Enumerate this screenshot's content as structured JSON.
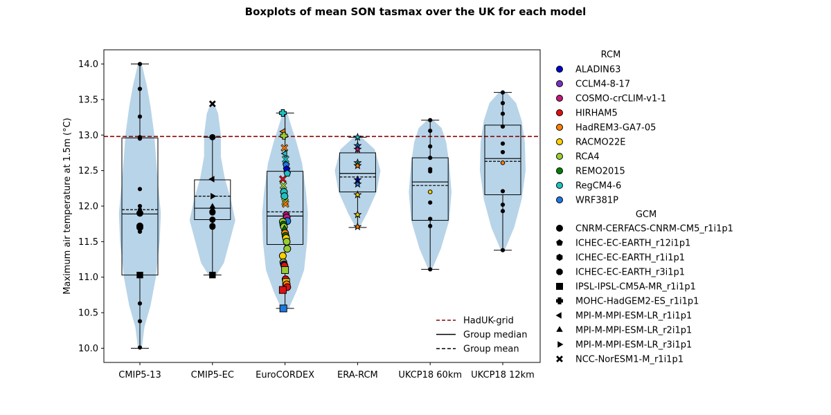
{
  "chart_data": {
    "type": "boxplot",
    "title": "Boxplots of mean SON tasmax over the UK for each model",
    "ylabel": "Maximum air temperature at 1.5m (°C)",
    "xlabel": "",
    "ylim": [
      9.8,
      14.2
    ],
    "yticks": [
      10.0,
      10.5,
      11.0,
      11.5,
      12.0,
      12.5,
      13.0,
      13.5,
      14.0
    ],
    "grid": false,
    "categories": [
      "CMIP5-13",
      "CMIP5-EC",
      "EuroCORDEX",
      "ERA-RCM",
      "UKCP18 60km",
      "UKCP18 12km"
    ],
    "reference_line": {
      "name": "HadUK-grid",
      "value": 12.98,
      "color": "#8b0000",
      "style": "dashed"
    },
    "boxes": [
      {
        "category": "CMIP5-13",
        "whisker_low": 10.0,
        "q1": 11.03,
        "median": 11.89,
        "mean": 11.95,
        "q3": 12.96,
        "whisker_high": 14.0
      },
      {
        "category": "CMIP5-EC",
        "whisker_low": 11.03,
        "q1": 11.81,
        "median": 11.97,
        "mean": 12.14,
        "q3": 12.37,
        "whisker_high": 12.97
      },
      {
        "category": "EuroCORDEX",
        "whisker_low": 10.56,
        "q1": 11.46,
        "median": 11.86,
        "mean": 11.92,
        "q3": 12.49,
        "whisker_high": 13.31
      },
      {
        "category": "ERA-RCM",
        "whisker_low": 11.7,
        "q1": 12.2,
        "median": 12.46,
        "mean": 12.41,
        "q3": 12.75,
        "whisker_high": 12.97
      },
      {
        "category": "UKCP18 60km",
        "whisker_low": 11.11,
        "q1": 11.8,
        "median": 12.34,
        "mean": 12.29,
        "q3": 12.68,
        "whisker_high": 13.21
      },
      {
        "category": "UKCP18 12km",
        "whisker_low": 11.38,
        "q1": 12.16,
        "median": 12.67,
        "mean": 12.63,
        "q3": 13.14,
        "whisker_high": 13.6
      }
    ],
    "violins": [
      {
        "category": "CMIP5-13",
        "profile": [
          [
            10.0,
            0.05
          ],
          [
            10.3,
            0.12
          ],
          [
            10.6,
            0.28
          ],
          [
            11.0,
            0.42
          ],
          [
            11.5,
            0.52
          ],
          [
            11.9,
            0.55
          ],
          [
            12.3,
            0.48
          ],
          [
            12.7,
            0.42
          ],
          [
            13.0,
            0.38
          ],
          [
            13.4,
            0.28
          ],
          [
            13.7,
            0.18
          ],
          [
            14.0,
            0.05
          ]
        ]
      },
      {
        "category": "CMIP5-EC",
        "profile": [
          [
            11.03,
            0.1
          ],
          [
            11.2,
            0.3
          ],
          [
            11.5,
            0.45
          ],
          [
            11.8,
            0.6
          ],
          [
            12.1,
            0.48
          ],
          [
            12.4,
            0.32
          ],
          [
            12.7,
            0.22
          ],
          [
            13.0,
            0.22
          ],
          [
            13.3,
            0.15
          ],
          [
            13.44,
            0.05
          ]
        ]
      },
      {
        "category": "EuroCORDEX",
        "profile": [
          [
            10.56,
            0.1
          ],
          [
            10.8,
            0.3
          ],
          [
            11.1,
            0.5
          ],
          [
            11.5,
            0.58
          ],
          [
            11.9,
            0.6
          ],
          [
            12.2,
            0.55
          ],
          [
            12.6,
            0.45
          ],
          [
            12.9,
            0.3
          ],
          [
            13.1,
            0.18
          ],
          [
            13.31,
            0.06
          ]
        ]
      },
      {
        "category": "ERA-RCM",
        "profile": [
          [
            11.7,
            0.05
          ],
          [
            11.9,
            0.25
          ],
          [
            12.2,
            0.5
          ],
          [
            12.5,
            0.6
          ],
          [
            12.8,
            0.45
          ],
          [
            12.97,
            0.1
          ]
        ]
      },
      {
        "category": "UKCP18 60km",
        "profile": [
          [
            11.11,
            0.05
          ],
          [
            11.4,
            0.28
          ],
          [
            11.8,
            0.5
          ],
          [
            12.2,
            0.56
          ],
          [
            12.6,
            0.5
          ],
          [
            12.9,
            0.42
          ],
          [
            13.1,
            0.3
          ],
          [
            13.21,
            0.08
          ]
        ]
      },
      {
        "category": "UKCP18 12km",
        "profile": [
          [
            11.38,
            0.05
          ],
          [
            11.7,
            0.3
          ],
          [
            12.1,
            0.5
          ],
          [
            12.5,
            0.6
          ],
          [
            12.9,
            0.58
          ],
          [
            13.2,
            0.5
          ],
          [
            13.45,
            0.35
          ],
          [
            13.6,
            0.1
          ]
        ]
      }
    ],
    "points": [
      {
        "category": "CMIP5-13",
        "values": [
          14.0,
          13.65,
          13.26,
          12.97,
          12.95,
          12.24,
          12.0,
          11.95,
          11.9,
          11.72,
          11.7,
          11.64,
          11.03,
          10.63,
          10.38,
          10.01
        ]
      },
      {
        "category": "CMIP5-EC",
        "values": [
          13.44,
          12.97,
          12.38,
          12.14,
          11.99,
          11.95,
          11.92,
          11.91,
          11.81,
          11.72,
          11.71,
          11.03
        ]
      },
      {
        "category": "ERA-RCM",
        "values": [
          12.97,
          12.85,
          12.8,
          12.61,
          12.57,
          12.37,
          12.31,
          12.16,
          11.88,
          11.71
        ]
      },
      {
        "category": "UKCP18 60km",
        "values": [
          13.21,
          13.06,
          12.84,
          12.68,
          12.52,
          12.49,
          12.2,
          12.05,
          11.82,
          11.72,
          11.11
        ]
      },
      {
        "category": "UKCP18 12km",
        "values": [
          13.6,
          13.45,
          13.3,
          13.12,
          12.88,
          12.76,
          12.61,
          12.21,
          12.02,
          11.93,
          11.38
        ]
      }
    ],
    "eurocordex_points": [
      {
        "value": 13.31,
        "rcm": "RegCM4-6",
        "gcm": "MOHC-HadGEM2-ES_r1i1p1"
      },
      {
        "value": 13.05,
        "rcm": "HadREM3-GA7-05",
        "gcm": "MPI-M-MPI-ESM-LR_r1i1p1"
      },
      {
        "value": 12.99,
        "rcm": "RCA4",
        "gcm": "MOHC-HadGEM2-ES_r1i1p1"
      },
      {
        "value": 12.82,
        "rcm": "HadREM3-GA7-05",
        "gcm": "NCC-NorESM1-M_r1i1p1"
      },
      {
        "value": 12.74,
        "rcm": "RegCM4-6",
        "gcm": "MPI-M-MPI-ESM-LR_r1i1p1"
      },
      {
        "value": 12.66,
        "rcm": "RegCM4-6",
        "gcm": "NCC-NorESM1-M_r1i1p1"
      },
      {
        "value": 12.58,
        "rcm": "WRF381P",
        "gcm": "ICHEC-EC-EARTH_r12i1p1"
      },
      {
        "value": 12.52,
        "rcm": "ALADIN63",
        "gcm": "ICHEC-EC-EARTH_r12i1p1"
      },
      {
        "value": 12.46,
        "rcm": "RegCM4-6",
        "gcm": "ICHEC-EC-EARTH_r12i1p1"
      },
      {
        "value": 12.38,
        "rcm": "HIRHAM5",
        "gcm": "NCC-NorESM1-M_r1i1p1"
      },
      {
        "value": 12.29,
        "rcm": "RCA4",
        "gcm": "NCC-NorESM1-M_r1i1p1"
      },
      {
        "value": 12.2,
        "rcm": "RegCM4-6",
        "gcm": "CNRM-CERFACS-CNRM-CM5_r1i1p1"
      },
      {
        "value": 12.14,
        "rcm": "RegCM4-6",
        "gcm": "CNRM-CERFACS-CNRM-CM5_r1i1p1"
      },
      {
        "value": 12.06,
        "rcm": "RCA4",
        "gcm": "NCC-NorESM1-M_r1i1p1"
      },
      {
        "value": 12.03,
        "rcm": "HadREM3-GA7-05",
        "gcm": "NCC-NorESM1-M_r1i1p1"
      },
      {
        "value": 11.88,
        "rcm": "COSMO-crCLIM-v1-1",
        "gcm": "ICHEC-EC-EARTH_r12i1p1"
      },
      {
        "value": 11.84,
        "rcm": "COSMO-crCLIM-v1-1",
        "gcm": "CNRM-CERFACS-CNRM-CM5_r1i1p1"
      },
      {
        "value": 11.79,
        "rcm": "WRF381P",
        "gcm": "CNRM-CERFACS-CNRM-CM5_r1i1p1"
      },
      {
        "value": 11.78,
        "rcm": "RCA4",
        "gcm": "CNRM-CERFACS-CNRM-CM5_r1i1p1"
      },
      {
        "value": 11.74,
        "rcm": "REMO2015",
        "gcm": "CNRM-CERFACS-CNRM-CM5_r1i1p1"
      },
      {
        "value": 11.71,
        "rcm": "RCA4",
        "gcm": "CNRM-CERFACS-CNRM-CM5_r1i1p1"
      },
      {
        "value": 11.68,
        "rcm": "REMO2015",
        "gcm": "MPI-M-MPI-ESM-LR_r2i1p1"
      },
      {
        "value": 11.62,
        "rcm": "HadREM3-GA7-05",
        "gcm": "CNRM-CERFACS-CNRM-CM5_r1i1p1"
      },
      {
        "value": 11.58,
        "rcm": "REMO2015",
        "gcm": "CNRM-CERFACS-CNRM-CM5_r1i1p1"
      },
      {
        "value": 11.55,
        "rcm": "RACMO22E",
        "gcm": "CNRM-CERFACS-CNRM-CM5_r1i1p1"
      },
      {
        "value": 11.5,
        "rcm": "RCA4",
        "gcm": "CNRM-CERFACS-CNRM-CM5_r1i1p1"
      },
      {
        "value": 11.4,
        "rcm": "RCA4",
        "gcm": "CNRM-CERFACS-CNRM-CM5_r1i1p1"
      },
      {
        "value": 11.3,
        "rcm": "RACMO22E",
        "gcm": "CNRM-CERFACS-CNRM-CM5_r1i1p1"
      },
      {
        "value": 11.21,
        "rcm": "RCA4",
        "gcm": "CNRM-CERFACS-CNRM-CM5_r1i1p1"
      },
      {
        "value": 11.18,
        "rcm": "ALADIN63",
        "gcm": "CNRM-CERFACS-CNRM-CM5_r1i1p1"
      },
      {
        "value": 11.16,
        "rcm": "HIRHAM5",
        "gcm": "CNRM-CERFACS-CNRM-CM5_r1i1p1"
      },
      {
        "value": 11.1,
        "rcm": "RCA4",
        "gcm": "IPSL-IPSL-CM5A-MR_r1i1p1"
      },
      {
        "value": 10.97,
        "rcm": "HIRHAM5",
        "gcm": "CNRM-CERFACS-CNRM-CM5_r1i1p1"
      },
      {
        "value": 10.93,
        "rcm": "RACMO22E",
        "gcm": "IPSL-IPSL-CM5A-MR_r1i1p1"
      },
      {
        "value": 10.9,
        "rcm": "HadREM3-GA7-05",
        "gcm": "CNRM-CERFACS-CNRM-CM5_r1i1p1"
      },
      {
        "value": 10.86,
        "rcm": "HIRHAM5",
        "gcm": "CNRM-CERFACS-CNRM-CM5_r1i1p1"
      },
      {
        "value": 10.82,
        "rcm": "HIRHAM5",
        "gcm": "IPSL-IPSL-CM5A-MR_r1i1p1"
      },
      {
        "value": 10.56,
        "rcm": "WRF381P",
        "gcm": "IPSL-IPSL-CM5A-MR_r1i1p1"
      }
    ],
    "rcm_legend": {
      "title": "RCM",
      "items": [
        {
          "label": "ALADIN63",
          "color": "#0000cd"
        },
        {
          "label": "CCLM4-8-17",
          "color": "#7b2fbf"
        },
        {
          "label": "COSMO-crCLIM-v1-1",
          "color": "#c01a7a"
        },
        {
          "label": "HIRHAM5",
          "color": "#e01010"
        },
        {
          "label": "HadREM3-GA7-05",
          "color": "#ff8000"
        },
        {
          "label": "RACMO22E",
          "color": "#ffd000"
        },
        {
          "label": "RCA4",
          "color": "#9acd32"
        },
        {
          "label": "REMO2015",
          "color": "#008000"
        },
        {
          "label": "RegCM4-6",
          "color": "#20c0c0"
        },
        {
          "label": "WRF381P",
          "color": "#1e78e0"
        }
      ]
    },
    "gcm_legend": {
      "title": "GCM",
      "items": [
        {
          "label": "CNRM-CERFACS-CNRM-CM5_r1i1p1",
          "marker": "circle"
        },
        {
          "label": "ICHEC-EC-EARTH_r12i1p1",
          "marker": "pentagon"
        },
        {
          "label": "ICHEC-EC-EARTH_r1i1p1",
          "marker": "hexagon"
        },
        {
          "label": "ICHEC-EC-EARTH_r3i1p1",
          "marker": "octagon"
        },
        {
          "label": "IPSL-IPSL-CM5A-MR_r1i1p1",
          "marker": "square"
        },
        {
          "label": "MOHC-HadGEM2-ES_r1i1p1",
          "marker": "plus"
        },
        {
          "label": "MPI-M-MPI-ESM-LR_r1i1p1",
          "marker": "triangle-left"
        },
        {
          "label": "MPI-M-MPI-ESM-LR_r2i1p1",
          "marker": "triangle-up"
        },
        {
          "label": "MPI-M-MPI-ESM-LR_r3i1p1",
          "marker": "triangle-right"
        },
        {
          "label": "NCC-NorESM1-M_r1i1p1",
          "marker": "x"
        }
      ]
    },
    "line_legend": {
      "placement": "lower-right",
      "items": [
        {
          "label": "HadUK-grid",
          "style": "dashed",
          "color": "#8b0000"
        },
        {
          "label": "Group median",
          "style": "solid",
          "color": "#000000"
        },
        {
          "label": "Group mean",
          "style": "dashed",
          "color": "#000000"
        }
      ]
    },
    "violin_color": "#b8d4e8"
  }
}
